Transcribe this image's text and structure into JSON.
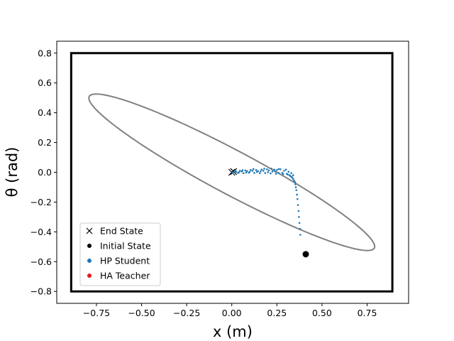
{
  "chart_data": {
    "type": "scatter",
    "xlabel": "x (m)",
    "ylabel": "θ (rad)",
    "xlim": [
      -0.97,
      0.98
    ],
    "ylim": [
      -0.88,
      0.88
    ],
    "x_ticks": [
      -0.75,
      -0.5,
      -0.25,
      0.0,
      0.25,
      0.5,
      0.75
    ],
    "x_tick_labels": [
      "−0.75",
      "−0.50",
      "−0.25",
      "0.00",
      "0.25",
      "0.50",
      "0.75"
    ],
    "y_ticks": [
      -0.8,
      -0.6,
      -0.4,
      -0.2,
      0.0,
      0.2,
      0.4,
      0.6,
      0.8
    ],
    "y_tick_labels": [
      "−0.8",
      "−0.6",
      "−0.4",
      "−0.2",
      "0.0",
      "0.2",
      "0.4",
      "0.6",
      "0.8"
    ],
    "safety_box": {
      "x": [
        -0.89,
        0.89
      ],
      "y": [
        -0.8,
        0.8
      ],
      "color": "#000000"
    },
    "safety_ellipse": {
      "center": [
        0.0,
        0.0
      ],
      "a": 0.94,
      "b": 0.14,
      "angle_deg": -33,
      "color": "#808080"
    },
    "series": [
      {
        "name": "End State",
        "marker": "x",
        "color": "#000000",
        "points": [
          [
            0.0,
            0.0
          ],
          [
            0.01,
            0.005
          ]
        ]
      },
      {
        "name": "Initial State",
        "marker": "o",
        "color": "#000000",
        "points": [
          [
            0.41,
            -0.55
          ]
        ]
      },
      {
        "name": "HP Student",
        "marker": "dot",
        "color": "#1f77b4",
        "points": [
          [
            0.38,
            -0.42
          ],
          [
            0.378,
            -0.38
          ],
          [
            0.375,
            -0.34
          ],
          [
            0.372,
            -0.3
          ],
          [
            0.37,
            -0.26
          ],
          [
            0.367,
            -0.22
          ],
          [
            0.364,
            -0.18
          ],
          [
            0.361,
            -0.15
          ],
          [
            0.358,
            -0.12
          ],
          [
            0.355,
            -0.1
          ],
          [
            0.352,
            -0.08
          ],
          [
            0.35,
            -0.065
          ],
          [
            0.345,
            -0.055
          ],
          [
            0.34,
            -0.045
          ],
          [
            0.335,
            -0.035
          ],
          [
            0.33,
            -0.03
          ],
          [
            0.325,
            -0.025
          ],
          [
            0.32,
            -0.02
          ],
          [
            0.31,
            -0.015
          ],
          [
            0.305,
            -0.01
          ],
          [
            0.29,
            0.01
          ],
          [
            0.285,
            -0.012
          ],
          [
            0.27,
            0.02
          ],
          [
            0.26,
            -0.005
          ],
          [
            0.25,
            0.015
          ],
          [
            0.245,
            -0.01
          ],
          [
            0.235,
            0.018
          ],
          [
            0.225,
            0.005
          ],
          [
            0.215,
            -0.008
          ],
          [
            0.205,
            0.012
          ],
          [
            0.195,
            0.02
          ],
          [
            0.185,
            -0.005
          ],
          [
            0.175,
            0.01
          ],
          [
            0.165,
            0.018
          ],
          [
            0.155,
            -0.006
          ],
          [
            0.145,
            0.008
          ],
          [
            0.135,
            0.015
          ],
          [
            0.125,
            -0.004
          ],
          [
            0.115,
            0.01
          ],
          [
            0.105,
            0.016
          ],
          [
            0.095,
            -0.003
          ],
          [
            0.085,
            0.008
          ],
          [
            0.075,
            0.012
          ],
          [
            0.065,
            -0.006
          ],
          [
            0.055,
            0.005
          ],
          [
            0.045,
            0.01
          ],
          [
            0.035,
            -0.004
          ],
          [
            0.025,
            0.003
          ],
          [
            0.015,
            0.006
          ],
          [
            0.005,
            -0.002
          ],
          [
            0.02,
            0.012
          ],
          [
            0.04,
            0.0
          ],
          [
            0.06,
            0.014
          ],
          [
            0.08,
            -0.002
          ],
          [
            0.1,
            0.004
          ],
          [
            0.12,
            0.022
          ],
          [
            0.14,
            0.002
          ],
          [
            0.16,
            0.006
          ],
          [
            0.18,
            0.024
          ],
          [
            0.2,
            0.0
          ],
          [
            0.22,
            0.024
          ],
          [
            0.24,
            0.006
          ],
          [
            0.26,
            0.022
          ],
          [
            0.28,
            -0.004
          ],
          [
            0.3,
            0.018
          ],
          [
            0.315,
            0.004
          ],
          [
            0.33,
            -0.006
          ],
          [
            0.34,
            -0.02
          ]
        ]
      },
      {
        "name": "HA Teacher",
        "marker": "dot",
        "color": "#e41a1c",
        "points": []
      }
    ],
    "legend": {
      "placement": "lower-left",
      "entries": [
        {
          "label": "End State",
          "marker": "x",
          "color": "#000000"
        },
        {
          "label": "Initial State",
          "marker": "o",
          "color": "#000000"
        },
        {
          "label": "HP Student",
          "marker": "o",
          "color": "#1f77b4"
        },
        {
          "label": "HA Teacher",
          "marker": "o",
          "color": "#e41a1c"
        }
      ]
    },
    "grid": false
  }
}
